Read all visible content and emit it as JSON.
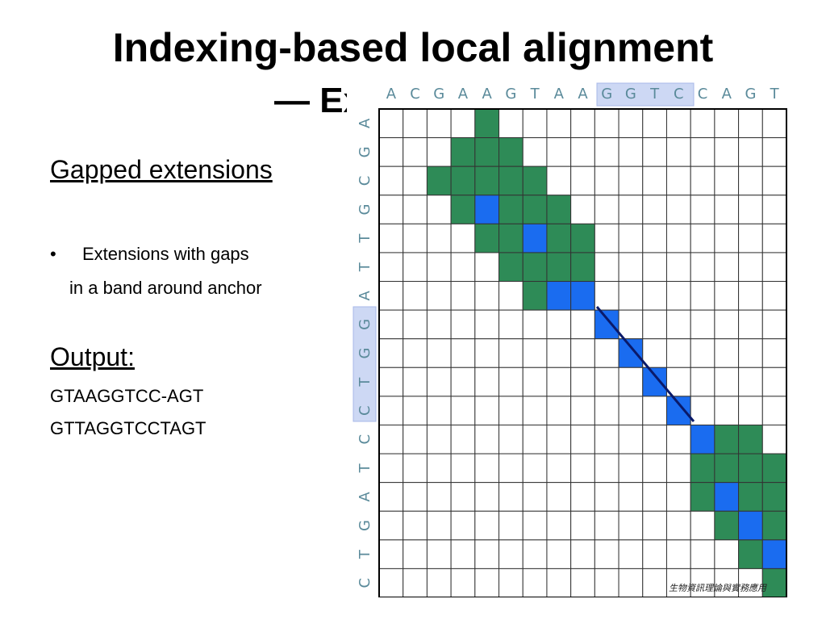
{
  "slide": {
    "title": "Indexing-based local alignment",
    "subtitle_visible": "— Ex",
    "sections": [
      {
        "heading": "Gapped extensions",
        "bullet": "•",
        "lines": [
          "Extensions with gaps",
          "in a band around anchor"
        ]
      },
      {
        "heading": "Output:",
        "lines": [
          "GTAAGGTCC-AGT",
          "GTTAGGTCCTAGT"
        ]
      }
    ],
    "matrix": {
      "top_sequence": [
        "A",
        "C",
        "G",
        "A",
        "A",
        "G",
        "T",
        "A",
        "A",
        "G",
        "G",
        "T",
        "C",
        "C",
        "A",
        "G",
        "T"
      ],
      "left_sequence": [
        "A",
        "G",
        "C",
        "G",
        "T",
        "T",
        "A",
        "G",
        "G",
        "T",
        "C",
        "C",
        "T",
        "A",
        "G",
        "T",
        "C"
      ],
      "watermark": "生物資訊理論與實務應用"
    }
  }
}
